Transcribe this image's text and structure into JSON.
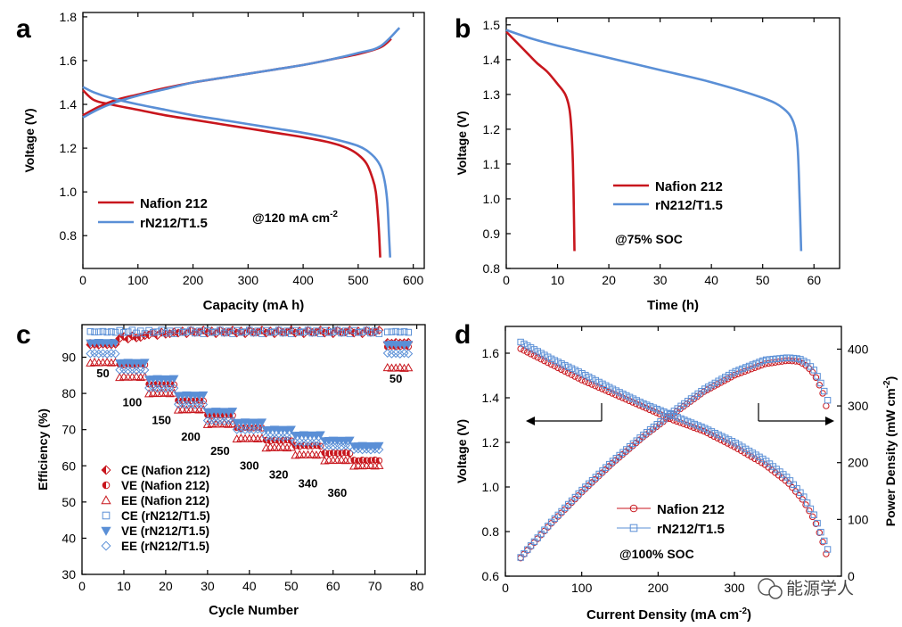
{
  "colors": {
    "nafion": "#c8161d",
    "rn212": "#5a8fd6",
    "axis": "#000000"
  },
  "chart_data": [
    {
      "panel": "a",
      "type": "line",
      "xlabel": "Capacity (mA h)",
      "ylabel": "Voltage (V)",
      "xlim": [
        0,
        620
      ],
      "ylim": [
        0.65,
        1.82
      ],
      "xticks": [
        "0",
        "100",
        "200",
        "300",
        "400",
        "500",
        "600"
      ],
      "yticks": [
        "0.8",
        "1.0",
        "1.2",
        "1.4",
        "1.6",
        "1.8"
      ],
      "annotation": {
        "main": "@120 mA cm",
        "sup": "-2"
      },
      "legend": "bottom-left",
      "series": [
        {
          "name": "Nafion 212",
          "color": "nafion",
          "role": "charge",
          "x": [
            0,
            30,
            60,
            100,
            150,
            200,
            250,
            300,
            350,
            400,
            450,
            500,
            540,
            560
          ],
          "y": [
            1.35,
            1.39,
            1.42,
            1.445,
            1.475,
            1.5,
            1.52,
            1.54,
            1.56,
            1.58,
            1.605,
            1.63,
            1.66,
            1.7
          ]
        },
        {
          "name": "Nafion 212",
          "color": "nafion",
          "role": "discharge",
          "x": [
            0,
            20,
            50,
            100,
            150,
            200,
            250,
            300,
            350,
            400,
            450,
            480,
            500,
            515,
            525,
            532,
            537,
            540
          ],
          "y": [
            1.465,
            1.42,
            1.4,
            1.375,
            1.35,
            1.33,
            1.31,
            1.29,
            1.27,
            1.25,
            1.225,
            1.2,
            1.17,
            1.13,
            1.07,
            1.0,
            0.85,
            0.7
          ]
        },
        {
          "name": "rN212/T1.5",
          "color": "rn212",
          "role": "charge",
          "x": [
            0,
            30,
            60,
            100,
            150,
            200,
            250,
            300,
            350,
            400,
            450,
            500,
            540,
            575
          ],
          "y": [
            1.34,
            1.38,
            1.41,
            1.44,
            1.47,
            1.5,
            1.52,
            1.54,
            1.56,
            1.58,
            1.605,
            1.635,
            1.665,
            1.75
          ]
        },
        {
          "name": "rN212/T1.5",
          "color": "rn212",
          "role": "discharge",
          "x": [
            0,
            20,
            50,
            100,
            150,
            200,
            250,
            300,
            350,
            400,
            450,
            500,
            525,
            540,
            548,
            553,
            556,
            558
          ],
          "y": [
            1.48,
            1.455,
            1.43,
            1.4,
            1.375,
            1.35,
            1.33,
            1.31,
            1.29,
            1.27,
            1.245,
            1.21,
            1.17,
            1.12,
            1.05,
            0.95,
            0.8,
            0.7
          ]
        }
      ]
    },
    {
      "panel": "b",
      "type": "line",
      "xlabel": "Time (h)",
      "ylabel": "Voltage (V)",
      "xlim": [
        0,
        65
      ],
      "ylim": [
        0.8,
        1.52
      ],
      "xticks": [
        "0",
        "10",
        "20",
        "30",
        "40",
        "50",
        "60"
      ],
      "yticks": [
        "0.8",
        "0.9",
        "1.0",
        "1.1",
        "1.2",
        "1.3",
        "1.4",
        "1.5"
      ],
      "annotation": {
        "main": "@75% SOC",
        "sup": ""
      },
      "legend": "bottom-center",
      "series": [
        {
          "name": "Nafion 212",
          "color": "nafion",
          "x": [
            0,
            2,
            4,
            6,
            8,
            10,
            11.5,
            12.3,
            12.7,
            13.0,
            13.2,
            13.3
          ],
          "y": [
            1.48,
            1.45,
            1.42,
            1.39,
            1.365,
            1.33,
            1.3,
            1.26,
            1.2,
            1.1,
            0.95,
            0.85
          ]
        },
        {
          "name": "rN212/T1.5",
          "color": "rn212",
          "x": [
            0,
            5,
            10,
            20,
            30,
            40,
            50,
            54,
            56,
            56.8,
            57.2,
            57.5
          ],
          "y": [
            1.485,
            1.46,
            1.44,
            1.405,
            1.37,
            1.335,
            1.29,
            1.26,
            1.22,
            1.15,
            1.0,
            0.85
          ]
        }
      ]
    },
    {
      "panel": "c",
      "type": "scatter",
      "xlabel": "Cycle Number",
      "ylabel": "Efficiency (%)",
      "xlim": [
        0,
        82
      ],
      "ylim": [
        30,
        99
      ],
      "xticks": [
        "0",
        "10",
        "20",
        "30",
        "40",
        "50",
        "60",
        "70",
        "80"
      ],
      "yticks": [
        "30",
        "40",
        "50",
        "60",
        "70",
        "80",
        "90"
      ],
      "legend": "bottom-left",
      "current_labels": [
        {
          "text": "50",
          "x": 5,
          "y": 84.5
        },
        {
          "text": "100",
          "x": 12,
          "y": 76.5
        },
        {
          "text": "150",
          "x": 19,
          "y": 71.5
        },
        {
          "text": "200",
          "x": 26,
          "y": 67
        },
        {
          "text": "250",
          "x": 33,
          "y": 63
        },
        {
          "text": "300",
          "x": 40,
          "y": 59
        },
        {
          "text": "320",
          "x": 47,
          "y": 56.5
        },
        {
          "text": "340",
          "x": 54,
          "y": 54
        },
        {
          "text": "360",
          "x": 61,
          "y": 51.5
        },
        {
          "text": "50",
          "x": 75,
          "y": 83
        }
      ],
      "blocks": [
        {
          "start": 2,
          "end": 8,
          "ce_n": 93.5,
          "ve_n": 94.0,
          "ee_n": 88.5,
          "ce_r": 97.0,
          "ve_r": 94.0,
          "ee_r": 91.0
        },
        {
          "start": 9,
          "end": 15,
          "ce_n": 95.5,
          "ve_n": 88.0,
          "ee_n": 84.5,
          "ce_r": 97.0,
          "ve_r": 88.5,
          "ee_r": 86.5
        },
        {
          "start": 16,
          "end": 22,
          "ce_n": 96.5,
          "ve_n": 82.5,
          "ee_n": 80.0,
          "ce_r": 97.0,
          "ve_r": 84.0,
          "ee_r": 81.5
        },
        {
          "start": 23,
          "end": 29,
          "ce_n": 97.0,
          "ve_n": 78.0,
          "ee_n": 75.5,
          "ce_r": 97.0,
          "ve_r": 79.5,
          "ee_r": 77.0
        },
        {
          "start": 30,
          "end": 36,
          "ce_n": 97.0,
          "ve_n": 74.0,
          "ee_n": 71.5,
          "ce_r": 97.0,
          "ve_r": 75.0,
          "ee_r": 72.5
        },
        {
          "start": 37,
          "end": 43,
          "ce_n": 97.0,
          "ve_n": 70.5,
          "ee_n": 67.5,
          "ce_r": 97.0,
          "ve_r": 72.0,
          "ee_r": 70.0
        },
        {
          "start": 44,
          "end": 50,
          "ce_n": 97.0,
          "ve_n": 67.0,
          "ee_n": 65.0,
          "ce_r": 97.0,
          "ve_r": 70.0,
          "ee_r": 68.0
        },
        {
          "start": 51,
          "end": 57,
          "ce_n": 97.0,
          "ve_n": 65.5,
          "ee_n": 63.0,
          "ce_r": 97.0,
          "ve_r": 68.5,
          "ee_r": 66.5
        },
        {
          "start": 58,
          "end": 64,
          "ce_n": 97.0,
          "ve_n": 63.5,
          "ee_n": 61.5,
          "ce_r": 97.0,
          "ve_r": 67.0,
          "ee_r": 65.5
        },
        {
          "start": 65,
          "end": 71,
          "ce_n": 97.0,
          "ve_n": 61.5,
          "ee_n": 60.0,
          "ce_r": 97.0,
          "ve_r": 65.5,
          "ee_r": 64.5
        },
        {
          "start": 73,
          "end": 78,
          "ce_n": 94.0,
          "ve_n": 93.0,
          "ee_n": 87.0,
          "ce_r": 97.0,
          "ve_r": 93.5,
          "ee_r": 91.0
        }
      ],
      "series_legend": [
        {
          "name": "CE (Nafion 212)",
          "marker": "diamond-half",
          "color": "nafion",
          "key": "ce_n"
        },
        {
          "name": "VE (Nafion 212)",
          "marker": "circle-half",
          "color": "nafion",
          "key": "ve_n"
        },
        {
          "name": "EE (Nafion 212)",
          "marker": "triangle-up",
          "color": "nafion",
          "key": "ee_n"
        },
        {
          "name": "CE (rN212/T1.5)",
          "marker": "square",
          "color": "rn212",
          "key": "ce_r"
        },
        {
          "name": "VE (rN212/T1.5)",
          "marker": "triangle-down",
          "color": "rn212",
          "key": "ve_r"
        },
        {
          "name": "EE (rN212/T1.5)",
          "marker": "diamond",
          "color": "rn212",
          "key": "ee_r"
        }
      ]
    },
    {
      "panel": "d",
      "type": "scatter",
      "xlabel": {
        "main": "Current Density (mA cm",
        "sup": "-2",
        "tail": ")"
      },
      "ylabel": "Voltage (V)",
      "y2label": {
        "main": "Power Density (mW cm",
        "sup": "-2",
        "tail": ")"
      },
      "xlim": [
        0,
        440
      ],
      "ylim": [
        0.6,
        1.72
      ],
      "y2lim": [
        0,
        440
      ],
      "xticks": [
        "0",
        "100",
        "200",
        "300"
      ],
      "yticks": [
        "0.6",
        "0.8",
        "1.0",
        "1.2",
        "1.4",
        "1.6"
      ],
      "y2ticks": [
        "0",
        "100",
        "200",
        "300",
        "400"
      ],
      "annotation": {
        "main": "@100% SOC",
        "sup": ""
      },
      "legend": "bottom-center",
      "series": [
        {
          "name": "Nafion 212",
          "color": "nafion",
          "marker": "circle",
          "axis": "left",
          "x": [
            20,
            60,
            100,
            140,
            180,
            220,
            260,
            300,
            340,
            370,
            390,
            405,
            415,
            420
          ],
          "y": [
            1.62,
            1.55,
            1.48,
            1.42,
            1.36,
            1.3,
            1.25,
            1.18,
            1.1,
            1.02,
            0.94,
            0.85,
            0.76,
            0.7
          ]
        },
        {
          "name": "Nafion 212",
          "color": "nafion",
          "marker": "circle",
          "axis": "right",
          "x": [
            20,
            60,
            100,
            140,
            180,
            220,
            260,
            300,
            340,
            370,
            385,
            395,
            405,
            415,
            420
          ],
          "y": [
            32,
            93,
            148,
            199,
            245,
            286,
            325,
            354,
            374,
            380,
            378,
            370,
            355,
            325,
            300
          ]
        },
        {
          "name": "rN212/T1.5",
          "color": "rn212",
          "marker": "square",
          "axis": "left",
          "x": [
            20,
            60,
            100,
            140,
            180,
            220,
            260,
            300,
            340,
            370,
            390,
            405,
            415,
            422
          ],
          "y": [
            1.65,
            1.575,
            1.51,
            1.44,
            1.375,
            1.32,
            1.265,
            1.2,
            1.12,
            1.04,
            0.96,
            0.87,
            0.78,
            0.72
          ]
        },
        {
          "name": "rN212/T1.5",
          "color": "rn212",
          "marker": "square",
          "axis": "right",
          "x": [
            20,
            60,
            100,
            140,
            180,
            220,
            260,
            300,
            340,
            370,
            385,
            395,
            405,
            415,
            422
          ],
          "y": [
            33,
            95,
            151,
            202,
            248,
            290,
            329,
            360,
            381,
            385,
            383,
            376,
            362,
            335,
            310
          ]
        }
      ]
    }
  ],
  "panel_letters": [
    "a",
    "b",
    "c",
    "d"
  ],
  "watermark": "能源学人"
}
